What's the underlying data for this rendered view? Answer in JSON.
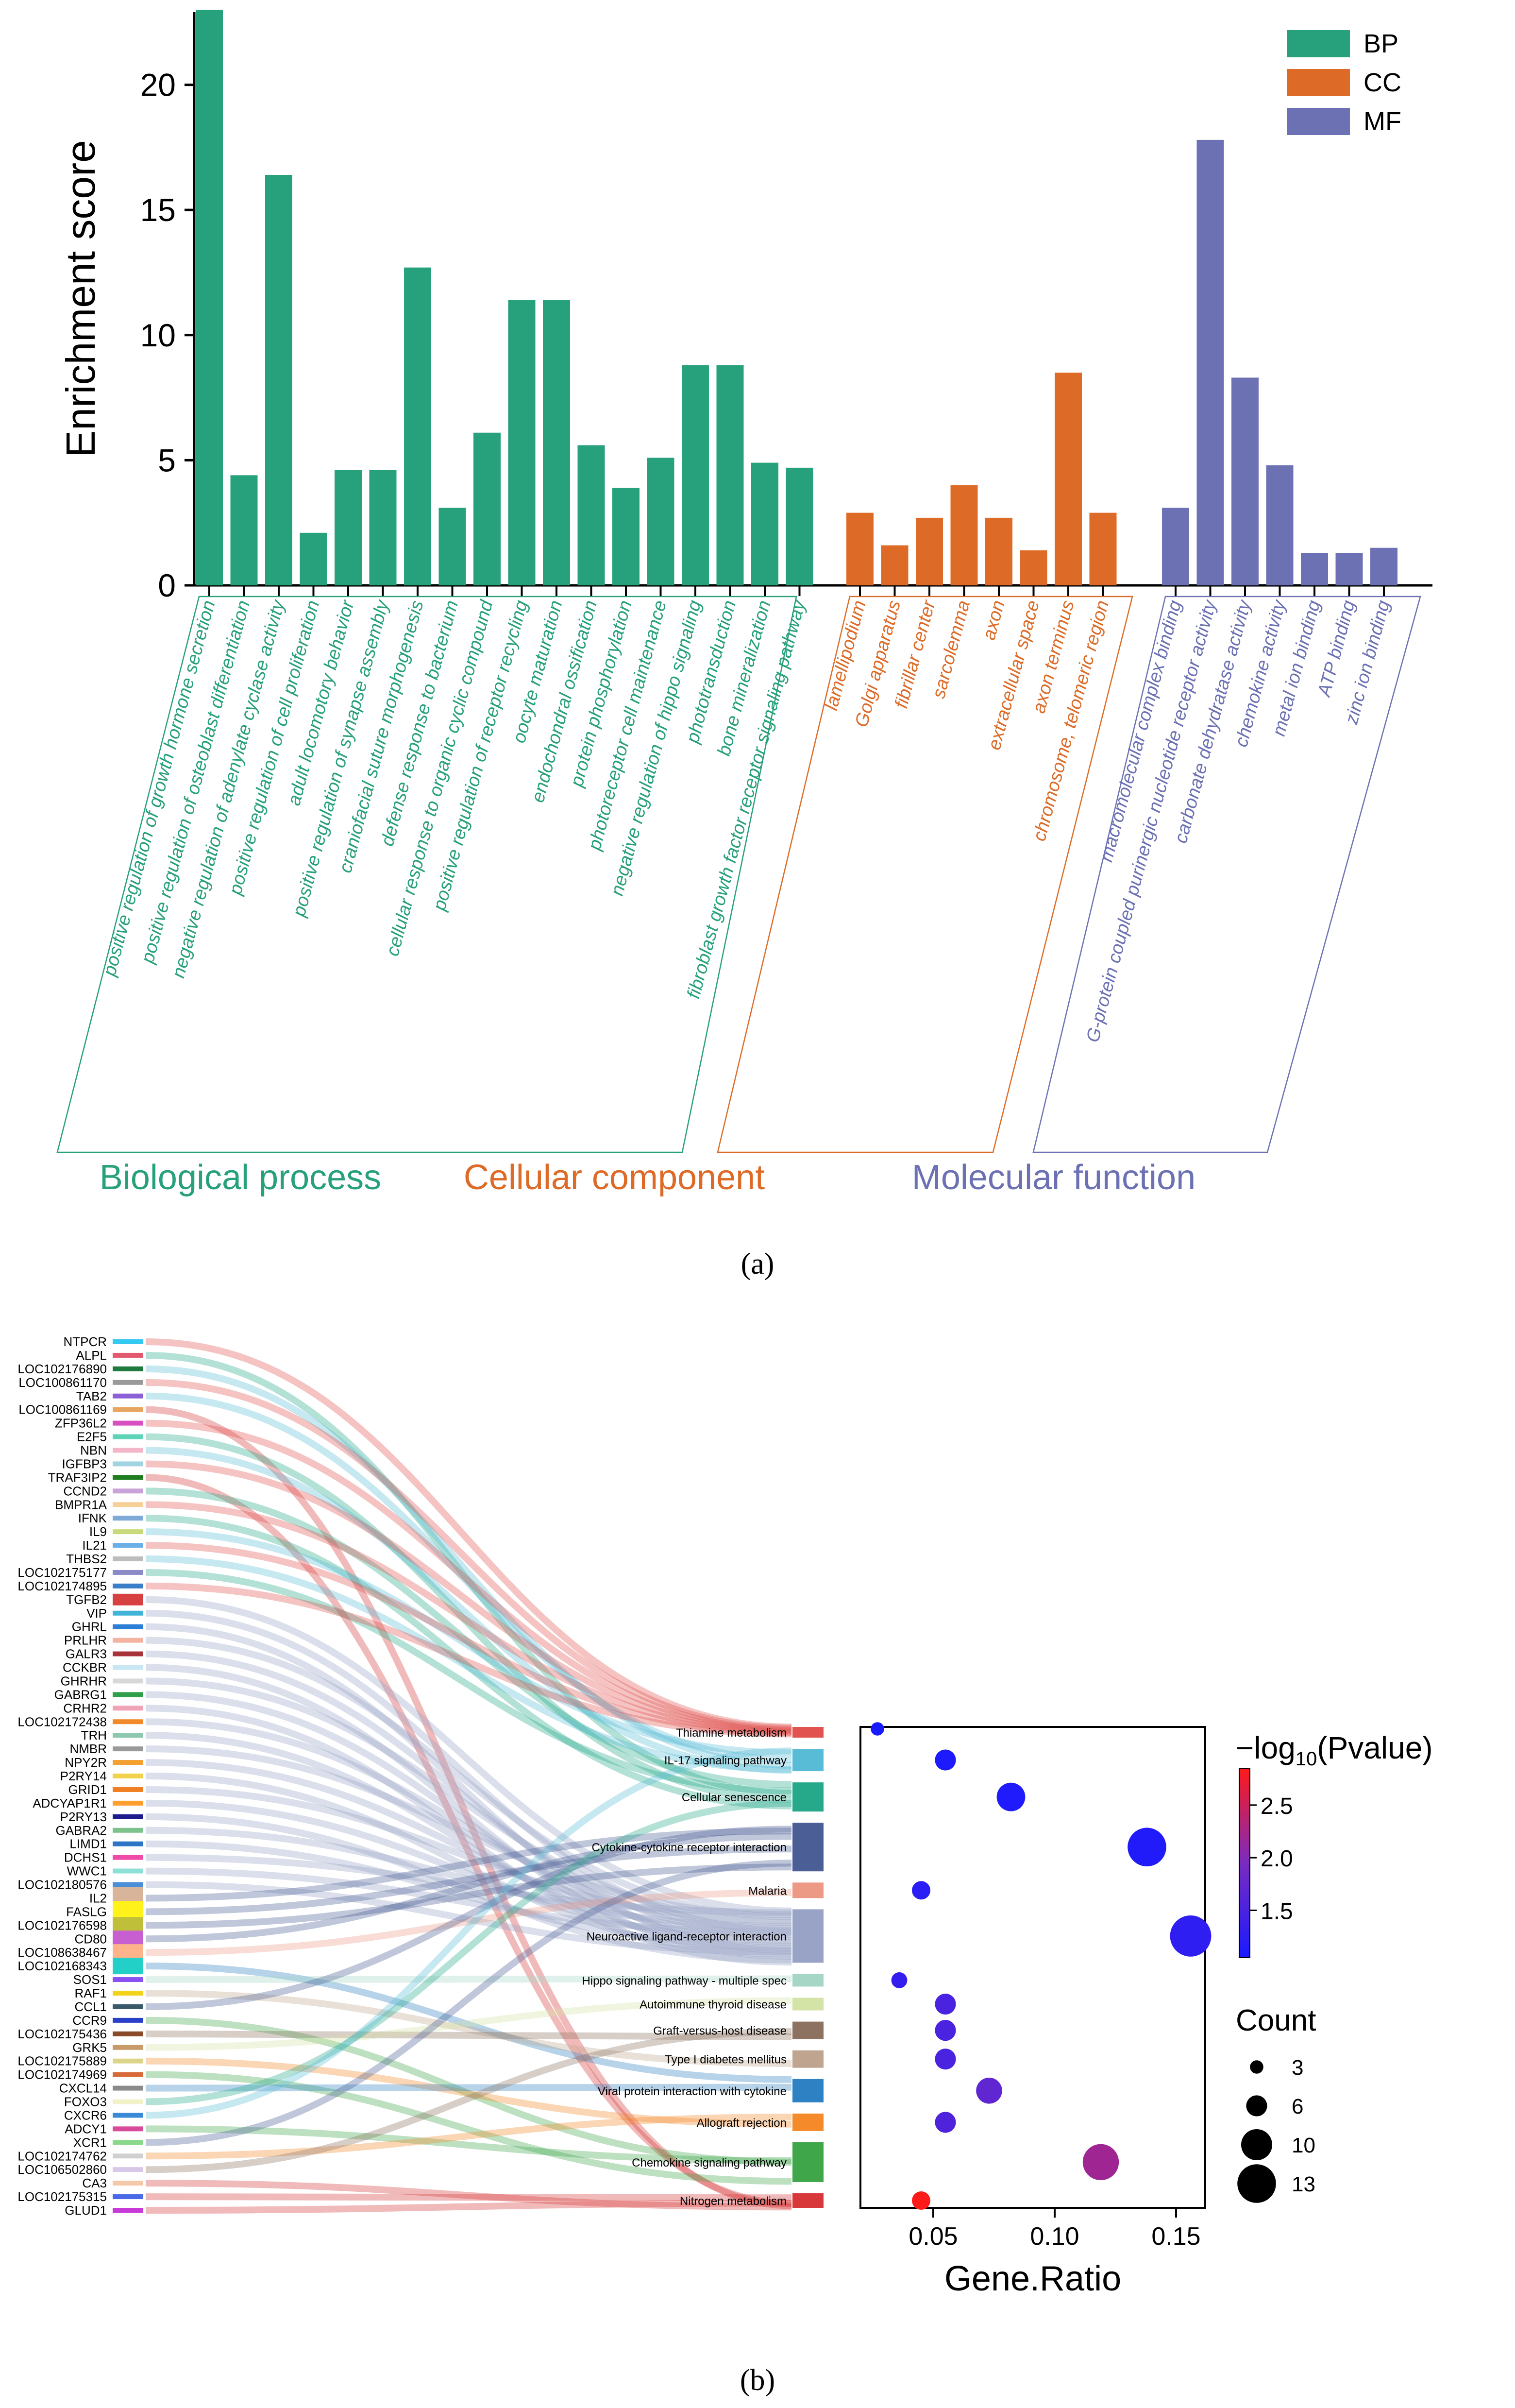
{
  "panel_labels": {
    "a": "(a)",
    "b": "(b)"
  },
  "chart_data": [
    {
      "type": "bar",
      "ylabel": "Enrichment score",
      "ylim": [
        0,
        23
      ],
      "yticks": [
        0,
        5,
        10,
        15,
        20
      ],
      "legend": {
        "placement": "top-right",
        "entries": [
          {
            "key": "BP",
            "label": "BP",
            "color": "#27a07c"
          },
          {
            "key": "CC",
            "label": "CC",
            "color": "#dd6b27"
          },
          {
            "key": "MF",
            "label": "MF",
            "color": "#6c71b3"
          }
        ]
      },
      "groups": [
        {
          "key": "BP",
          "label": "Biological process",
          "color": "#27a07c",
          "categories": [
            "positive regulation of growth hormone secretion",
            "positive regulation of osteoblast differentiation",
            "negative regulation of adenylate cyclase activity",
            "positive regulation of cell proliferation",
            "adult locomotory behavior",
            "positive regulation of synapse assembly",
            "craniofacial suture morphogenesis",
            "defense response to bacterium",
            "cellular response to organic cyclic compound",
            "positive regulation of receptor recycling",
            "oocyte maturation",
            "endochondral ossification",
            "protein phosphorylation",
            "photoreceptor cell maintenance",
            "negative regulation of hippo signaling",
            "phototransduction",
            "bone mineralization",
            "fibroblast growth factor receptor signaling pathway"
          ],
          "values": [
            23.0,
            4.4,
            16.4,
            2.1,
            4.6,
            4.6,
            12.7,
            3.1,
            6.1,
            11.4,
            11.4,
            5.6,
            3.9,
            5.1,
            8.8,
            8.8,
            4.9,
            4.7
          ]
        },
        {
          "key": "CC",
          "label": "Cellular component",
          "color": "#dd6b27",
          "categories": [
            "lamellipodium",
            "Golgi apparatus",
            "fibrillar center",
            "sarcolemma",
            "axon",
            "extracellular space",
            "axon terminus",
            "chromosome, telomeric region"
          ],
          "values": [
            2.9,
            1.6,
            2.7,
            4.0,
            2.7,
            1.4,
            8.5,
            2.9
          ]
        },
        {
          "key": "MF",
          "label": "Molecular function",
          "color": "#6c71b3",
          "categories": [
            "macromolecular complex binding",
            "G-protein coupled purinergic nucleotide receptor activity",
            "carbonate dehydratase activity",
            "chemokine activity",
            "metal ion binding",
            "ATP binding",
            "zinc ion binding"
          ],
          "values": [
            3.1,
            17.8,
            8.3,
            4.8,
            1.3,
            1.3,
            1.5
          ]
        }
      ]
    },
    {
      "type": "sankey",
      "genes": [
        {
          "name": "NTPCR",
          "color": "#35c8f0"
        },
        {
          "name": "ALPL",
          "color": "#e35a6e"
        },
        {
          "name": "LOC102176890",
          "color": "#1f7a3f"
        },
        {
          "name": "LOC100861170",
          "color": "#9a9a9a"
        },
        {
          "name": "TAB2",
          "color": "#8b5fd6"
        },
        {
          "name": "LOC100861169",
          "color": "#e6a65f"
        },
        {
          "name": "ZFP36L2",
          "color": "#d94fc1"
        },
        {
          "name": "E2F5",
          "color": "#5dd3b8"
        },
        {
          "name": "NBN",
          "color": "#f3b6c8"
        },
        {
          "name": "IGFBP3",
          "color": "#a2d3e0"
        },
        {
          "name": "TRAF3IP2",
          "color": "#1e7d1e"
        },
        {
          "name": "CCND2",
          "color": "#c9a2d8"
        },
        {
          "name": "BMPR1A",
          "color": "#f7d098"
        },
        {
          "name": "IFNK",
          "color": "#7fa9d6"
        },
        {
          "name": "IL9",
          "color": "#c7d97a"
        },
        {
          "name": "IL21",
          "color": "#6ab0e8"
        },
        {
          "name": "THBS2",
          "color": "#bcbcbc"
        },
        {
          "name": "LOC102175177",
          "color": "#8a8ac8"
        },
        {
          "name": "LOC102174895",
          "color": "#3a7dc9"
        },
        {
          "name": "TGFB2",
          "color": "#d64040"
        },
        {
          "name": "VIP",
          "color": "#41b5d9"
        },
        {
          "name": "GHRL",
          "color": "#2c7fd6"
        },
        {
          "name": "PRLHR",
          "color": "#f4b3a0"
        },
        {
          "name": "GALR3",
          "color": "#a8323a"
        },
        {
          "name": "CCKBR",
          "color": "#c7e8f2"
        },
        {
          "name": "GHRHR",
          "color": "#d8d8d8"
        },
        {
          "name": "GABRG1",
          "color": "#2f9f49"
        },
        {
          "name": "CRHR2",
          "color": "#f0a3b5"
        },
        {
          "name": "LOC102172438",
          "color": "#f08a2b"
        },
        {
          "name": "TRH",
          "color": "#8dc7b0"
        },
        {
          "name": "NMBR",
          "color": "#9a9a9a"
        },
        {
          "name": "NPY2R",
          "color": "#f3a030"
        },
        {
          "name": "P2RY14",
          "color": "#f2d24b"
        },
        {
          "name": "GRID1",
          "color": "#ef7f22"
        },
        {
          "name": "ADCYAP1R1",
          "color": "#ff9e2c"
        },
        {
          "name": "P2RY13",
          "color": "#1c1c8f"
        },
        {
          "name": "GABRA2",
          "color": "#7cc28a"
        },
        {
          "name": "LIMD1",
          "color": "#2b74c6"
        },
        {
          "name": "DCHS1",
          "color": "#f04aa8"
        },
        {
          "name": "WWC1",
          "color": "#8de0d8"
        },
        {
          "name": "LOC102180576",
          "color": "#4a8fd8"
        },
        {
          "name": "IL2",
          "color": "#d8b49a"
        },
        {
          "name": "FASLG",
          "color": "#fff21a"
        },
        {
          "name": "LOC102176598",
          "color": "#bfbf3a"
        },
        {
          "name": "CD80",
          "color": "#c85fd0"
        },
        {
          "name": "LOC108638467",
          "color": "#ffb38a"
        },
        {
          "name": "LOC102168343",
          "color": "#23d0c8"
        },
        {
          "name": "SOS1",
          "color": "#8a4ff0"
        },
        {
          "name": "RAF1",
          "color": "#f3d21a"
        },
        {
          "name": "CCL1",
          "color": "#3a5a6a"
        },
        {
          "name": "CCR9",
          "color": "#2840c8"
        },
        {
          "name": "LOC102175436",
          "color": "#8a4a2a"
        },
        {
          "name": "GRK5",
          "color": "#c89a6a"
        },
        {
          "name": "LOC102175889",
          "color": "#dcd48a"
        },
        {
          "name": "LOC102174969",
          "color": "#d86a3a"
        },
        {
          "name": "CXCL14",
          "color": "#8a8a8a"
        },
        {
          "name": "FOXO3",
          "color": "#f2f2c8"
        },
        {
          "name": "CXCR6",
          "color": "#3a8ad8"
        },
        {
          "name": "ADCY1",
          "color": "#d84a9a"
        },
        {
          "name": "XCR1",
          "color": "#8ad88a"
        },
        {
          "name": "LOC102174762",
          "color": "#d0d0d0"
        },
        {
          "name": "LOC106502860",
          "color": "#d8c8e8"
        },
        {
          "name": "CA3",
          "color": "#f4c8a8"
        },
        {
          "name": "LOC102175315",
          "color": "#4a6ae8"
        },
        {
          "name": "GLUD1",
          "color": "#c83ad8"
        }
      ],
      "pathways": [
        {
          "name": "Thiamine metabolism",
          "color": "#e0534f"
        },
        {
          "name": "IL-17 signaling pathway",
          "color": "#59bcd6"
        },
        {
          "name": "Cellular senescence",
          "color": "#26a98a"
        },
        {
          "name": "Cytokine-cytokine receptor interaction",
          "color": "#4b5e95"
        },
        {
          "name": "Malaria",
          "color": "#ec9a86"
        },
        {
          "name": "Neuroactive ligand-receptor interaction",
          "color": "#99a3c6"
        },
        {
          "name": "Hippo signaling pathway - multiple spec",
          "color": "#a6d7c6"
        },
        {
          "name": "Autoimmune thyroid disease",
          "color": "#d4e3a6"
        },
        {
          "name": "Graft-versus-host disease",
          "color": "#8d7262"
        },
        {
          "name": "Type I diabetes mellitus",
          "color": "#bfa58f"
        },
        {
          "name": "Viral protein interaction with cytokine",
          "color": "#2e82c3"
        },
        {
          "name": "Allograft rejection",
          "color": "#f48a2a"
        },
        {
          "name": "Chemokine signaling pathway",
          "color": "#3fa64a"
        },
        {
          "name": "Nitrogen metabolism",
          "color": "#d8383a"
        }
      ]
    },
    {
      "type": "scatter",
      "xlabel": "Gene.Ratio",
      "xlim": [
        0.02,
        0.162
      ],
      "xticks": [
        0.05,
        0.1,
        0.15
      ],
      "xtick_labels": [
        "0.05",
        "0.10",
        "0.15"
      ],
      "colorbar": {
        "title_prefix": "−log",
        "title_sub": "10",
        "title_suffix": "(Pvalue)",
        "ticks": [
          "2.5",
          "2.0",
          "1.5"
        ],
        "min": 1.05,
        "max": 2.85
      },
      "size_legend": {
        "title": "Count",
        "entries": [
          "3",
          "6",
          "10",
          "13"
        ]
      },
      "points": [
        {
          "pathway": "Thiamine metabolism",
          "gene_ratio": 0.027,
          "count": 3,
          "neg_log10_p": 1.05
        },
        {
          "pathway": "IL-17 signaling pathway",
          "gene_ratio": 0.055,
          "count": 6,
          "neg_log10_p": 1.08
        },
        {
          "pathway": "Cellular senescence",
          "gene_ratio": 0.082,
          "count": 9,
          "neg_log10_p": 1.1
        },
        {
          "pathway": "Cytokine-cytokine receptor interaction",
          "gene_ratio": 0.138,
          "count": 13,
          "neg_log10_p": 1.12
        },
        {
          "pathway": "Malaria",
          "gene_ratio": 0.045,
          "count": 5,
          "neg_log10_p": 1.2
        },
        {
          "pathway": "Neuroactive ligand-receptor interaction",
          "gene_ratio": 0.156,
          "count": 14,
          "neg_log10_p": 1.25
        },
        {
          "pathway": "Hippo signaling pathway - multiple spec",
          "gene_ratio": 0.036,
          "count": 4,
          "neg_log10_p": 1.28
        },
        {
          "pathway": "Autoimmune thyroid disease",
          "gene_ratio": 0.055,
          "count": 6,
          "neg_log10_p": 1.5
        },
        {
          "pathway": "Graft-versus-host disease",
          "gene_ratio": 0.055,
          "count": 6,
          "neg_log10_p": 1.5
        },
        {
          "pathway": "Type I diabetes mellitus",
          "gene_ratio": 0.055,
          "count": 6,
          "neg_log10_p": 1.5
        },
        {
          "pathway": "Viral protein interaction with cytokine",
          "gene_ratio": 0.073,
          "count": 8,
          "neg_log10_p": 1.7
        },
        {
          "pathway": "Allograft rejection",
          "gene_ratio": 0.055,
          "count": 6,
          "neg_log10_p": 1.55
        },
        {
          "pathway": "Chemokine signaling pathway",
          "gene_ratio": 0.119,
          "count": 12,
          "neg_log10_p": 2.2
        },
        {
          "pathway": "Nitrogen metabolism",
          "gene_ratio": 0.045,
          "count": 5,
          "neg_log10_p": 2.85
        }
      ]
    }
  ]
}
